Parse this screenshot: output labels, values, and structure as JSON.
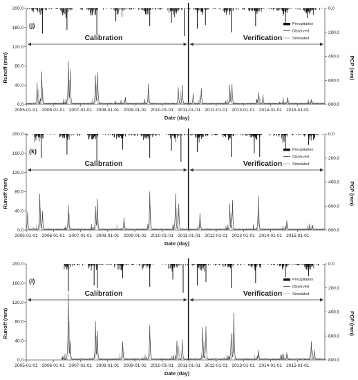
{
  "chart_data": [
    {
      "type": "line",
      "panel_label": "(j)",
      "ylabel_left": "Runoff (mm)",
      "ylabel_right": "PCP (mm)",
      "xlabel": "Date (day)",
      "ylim": [
        0,
        200
      ],
      "yticks": [
        "0.0",
        "40.0",
        "80.0",
        "120.0",
        "160.0",
        "200.0"
      ],
      "y2lim": [
        0,
        800
      ],
      "y2_inverted": true,
      "y2ticks": [
        "0.0",
        "200.0",
        "400.0",
        "600.0",
        "800.0"
      ],
      "xticks": [
        "2005-01-01",
        "2006-01-01",
        "2007-01-01",
        "2008-01-01",
        "2009-01-01",
        "2010-01-01",
        "2011-01-01",
        "2012-01-01",
        "2013-01-01",
        "2014-01-01",
        "2015-01-01"
      ],
      "phases": [
        "Calibration",
        "Verification"
      ],
      "legend": [
        "Precipitation",
        "Observed",
        "Simulated"
      ],
      "legend_position": "right",
      "observed_peaks": [
        [
          2005.4,
          45
        ],
        [
          2005.57,
          68
        ],
        [
          2006.55,
          90
        ],
        [
          2006.62,
          72
        ],
        [
          2007.55,
          60
        ],
        [
          2007.63,
          66
        ],
        [
          2008.65,
          15
        ],
        [
          2009.5,
          42
        ],
        [
          2010.6,
          35
        ],
        [
          2010.75,
          40
        ],
        [
          2011.15,
          22
        ],
        [
          2011.45,
          33
        ],
        [
          2012.5,
          40
        ],
        [
          2012.58,
          42
        ],
        [
          2013.55,
          25
        ],
        [
          2013.72,
          20
        ],
        [
          2014.62,
          15
        ],
        [
          2015.5,
          10
        ]
      ],
      "simulated_peaks": [
        [
          2005.45,
          30
        ],
        [
          2005.6,
          35
        ],
        [
          2006.58,
          50
        ],
        [
          2007.58,
          40
        ],
        [
          2008.62,
          10
        ],
        [
          2009.52,
          22
        ],
        [
          2010.68,
          28
        ],
        [
          2011.4,
          18
        ],
        [
          2012.52,
          25
        ],
        [
          2013.6,
          16
        ],
        [
          2014.65,
          10
        ],
        [
          2015.52,
          7
        ]
      ],
      "precipitation_peaks": [
        [
          2005.6,
          210
        ],
        [
          2006.5,
          180
        ],
        [
          2007.6,
          220
        ],
        [
          2008.3,
          110
        ],
        [
          2009.55,
          150
        ],
        [
          2010.35,
          120
        ],
        [
          2010.82,
          230
        ],
        [
          2011.3,
          170
        ],
        [
          2011.6,
          140
        ],
        [
          2012.55,
          200
        ],
        [
          2013.45,
          150
        ],
        [
          2014.55,
          120
        ],
        [
          2015.35,
          80
        ]
      ]
    },
    {
      "type": "line",
      "panel_label": "(k)",
      "ylabel_left": "Runoff (mm)",
      "ylabel_right": "PCP (mm)",
      "xlabel": "Date (day)",
      "ylim": [
        0,
        200
      ],
      "yticks": [
        "0.0",
        "40.0",
        "80.0",
        "120.0",
        "160.0",
        "200.0"
      ],
      "y2lim": [
        0,
        800
      ],
      "y2_inverted": true,
      "y2ticks": [
        "0.0",
        "200.0",
        "400.0",
        "600.0",
        "800.0"
      ],
      "xticks": [
        "2005-01-01",
        "2006-01-01",
        "2007-01-01",
        "2008-01-01",
        "2009-01-01",
        "2010-01-01",
        "2011-01-01",
        "2012-01-01",
        "2013-01-01",
        "2014-01-01",
        "2015-01-01"
      ],
      "phases": [
        "Calibration",
        "Verification"
      ],
      "legend": [
        "Precipitation",
        "Observed",
        "Simulated"
      ],
      "legend_position": "right",
      "observed_peaks": [
        [
          2005.05,
          38
        ],
        [
          2005.5,
          75
        ],
        [
          2005.6,
          40
        ],
        [
          2006.55,
          52
        ],
        [
          2007.55,
          50
        ],
        [
          2007.62,
          65
        ],
        [
          2008.6,
          25
        ],
        [
          2009.55,
          80
        ],
        [
          2010.5,
          75
        ],
        [
          2010.62,
          55
        ],
        [
          2011.4,
          35
        ],
        [
          2012.5,
          55
        ],
        [
          2012.6,
          62
        ],
        [
          2013.55,
          70
        ],
        [
          2014.6,
          20
        ],
        [
          2015.55,
          10
        ]
      ],
      "simulated_peaks": [
        [
          2005.52,
          45
        ],
        [
          2006.58,
          35
        ],
        [
          2007.6,
          40
        ],
        [
          2008.62,
          15
        ],
        [
          2009.57,
          50
        ],
        [
          2010.55,
          45
        ],
        [
          2011.42,
          20
        ],
        [
          2012.55,
          35
        ],
        [
          2013.57,
          40
        ],
        [
          2014.62,
          12
        ],
        [
          2015.57,
          6
        ]
      ],
      "precipitation_peaks": [
        [
          2005.55,
          200
        ],
        [
          2006.5,
          170
        ],
        [
          2007.6,
          230
        ],
        [
          2008.55,
          130
        ],
        [
          2009.55,
          200
        ],
        [
          2010.35,
          140
        ],
        [
          2010.7,
          230
        ],
        [
          2011.3,
          150
        ],
        [
          2012.55,
          190
        ],
        [
          2013.4,
          160
        ],
        [
          2013.6,
          190
        ],
        [
          2014.55,
          120
        ],
        [
          2015.4,
          90
        ]
      ]
    },
    {
      "type": "line",
      "panel_label": "(l)",
      "ylabel_left": "Runoff (mm)",
      "ylabel_right": "PCP (mm)",
      "xlabel": "Date (day)",
      "ylim": [
        0,
        200
      ],
      "yticks": [
        "0.0",
        "40.0",
        "80.0",
        "120.0",
        "160.0",
        "200.0"
      ],
      "y2lim": [
        0,
        800
      ],
      "y2_inverted": true,
      "y2ticks": [
        "0.0",
        "200.0",
        "400.0",
        "600.0",
        "800.0"
      ],
      "xticks": [
        "2005-01-01",
        "2006-01-01",
        "2007-01-01",
        "2008-01-01",
        "2009-01-01",
        "2010-01-01",
        "2011-01-01",
        "2012-01-01",
        "2013-01-01",
        "2014-01-01",
        "2015-01-01"
      ],
      "phases": [
        "Calibration",
        "Verification"
      ],
      "legend": [
        "Precipitation",
        "Observed",
        "Simulated"
      ],
      "legend_position": "right",
      "observed_peaks": [
        [
          2006.55,
          138
        ],
        [
          2006.62,
          40
        ],
        [
          2007.55,
          80
        ],
        [
          2007.62,
          60
        ],
        [
          2008.55,
          38
        ],
        [
          2009.55,
          72
        ],
        [
          2010.55,
          40
        ],
        [
          2010.75,
          42
        ],
        [
          2011.5,
          68
        ],
        [
          2011.62,
          70
        ],
        [
          2012.55,
          55
        ],
        [
          2012.65,
          98
        ],
        [
          2013.55,
          20
        ],
        [
          2014.6,
          15
        ],
        [
          2015.5,
          38
        ],
        [
          2015.62,
          20
        ]
      ],
      "simulated_peaks": [
        [
          2006.58,
          80
        ],
        [
          2007.58,
          50
        ],
        [
          2008.57,
          25
        ],
        [
          2009.57,
          42
        ],
        [
          2010.62,
          30
        ],
        [
          2011.55,
          40
        ],
        [
          2012.62,
          55
        ],
        [
          2013.57,
          14
        ],
        [
          2014.62,
          10
        ],
        [
          2015.55,
          20
        ]
      ],
      "precipitation_peaks": [
        [
          2006.55,
          230
        ],
        [
          2007.5,
          180
        ],
        [
          2007.62,
          200
        ],
        [
          2008.55,
          120
        ],
        [
          2009.55,
          190
        ],
        [
          2010.4,
          130
        ],
        [
          2010.78,
          240
        ],
        [
          2011.3,
          180
        ],
        [
          2011.62,
          150
        ],
        [
          2012.55,
          200
        ],
        [
          2013.45,
          160
        ],
        [
          2014.55,
          110
        ],
        [
          2015.4,
          100
        ]
      ]
    }
  ]
}
